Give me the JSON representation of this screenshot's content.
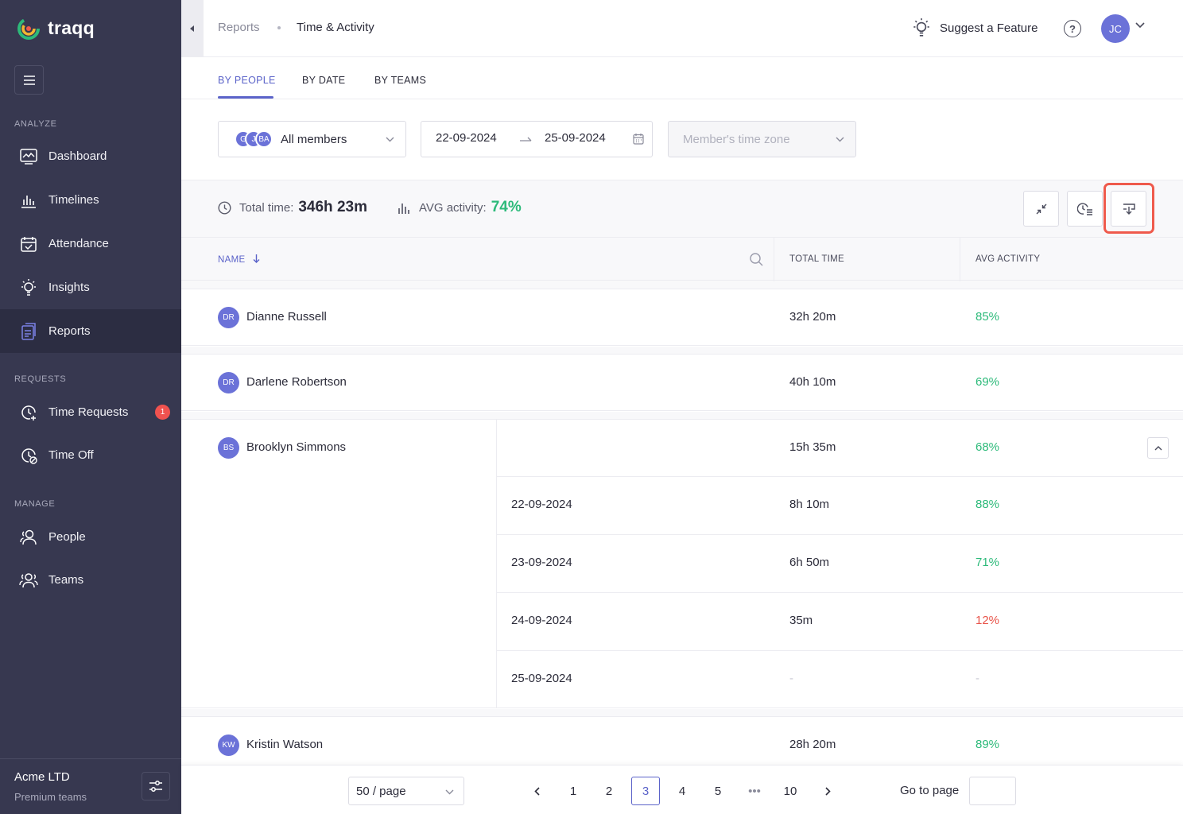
{
  "app": {
    "name": "traqq"
  },
  "sidebar": {
    "sections": {
      "analyze": "ANALYZE",
      "requests": "REQUESTS",
      "manage": "MANAGE"
    },
    "items": {
      "dashboard": "Dashboard",
      "timelines": "Timelines",
      "attendance": "Attendance",
      "insights": "Insights",
      "reports": "Reports",
      "time_requests": "Time Requests",
      "time_off": "Time Off",
      "people": "People",
      "teams": "Teams"
    },
    "time_requests_badge": "1",
    "company": "Acme LTD",
    "plan": "Premium teams"
  },
  "topbar": {
    "breadcrumb_parent": "Reports",
    "breadcrumb_current": "Time & Activity",
    "suggest_label": "Suggest a Feature",
    "help_label": "?",
    "user_initials": "JC"
  },
  "tabs": {
    "by_people": "BY PEOPLE",
    "by_date": "BY DATE",
    "by_teams": "BY TEAMS"
  },
  "filters": {
    "members_label": "All members",
    "member_avatars": [
      "G",
      "J",
      "BA"
    ],
    "date_from": "22-09-2024",
    "date_to": "25-09-2024",
    "timezone_placeholder": "Member's time zone"
  },
  "summary": {
    "total_label": "Total time:",
    "total_value": "346h 23m",
    "avg_label": "AVG activity:",
    "avg_value": "74%"
  },
  "table": {
    "headers": {
      "name": "NAME",
      "total_time": "TOTAL TIME",
      "avg_activity": "AVG ACTIVITY"
    },
    "rows": [
      {
        "initials": "DR",
        "name": "Dianne Russell",
        "total": "32h 20m",
        "avg": "85%"
      },
      {
        "initials": "DR",
        "name": "Darlene Robertson",
        "total": "40h 10m",
        "avg": "69%"
      },
      {
        "initials": "BS",
        "name": "Brooklyn Simmons",
        "total": "15h 35m",
        "avg": "68%",
        "days": [
          {
            "date": "22-09-2024",
            "total": "8h 10m",
            "avg": "88%"
          },
          {
            "date": "23-09-2024",
            "total": "6h 50m",
            "avg": "71%"
          },
          {
            "date": "24-09-2024",
            "total": "35m",
            "avg": "12%"
          },
          {
            "date": "25-09-2024",
            "total": "-",
            "avg": "-"
          }
        ]
      },
      {
        "initials": "KW",
        "name": "Kristin Watson",
        "total": "28h 20m",
        "avg": "89%"
      }
    ]
  },
  "pagination": {
    "per_page": "50 / page",
    "pages": [
      "1",
      "2",
      "3",
      "4",
      "5",
      "•••",
      "10"
    ],
    "current": "3",
    "goto_label": "Go to page"
  },
  "colors": {
    "sidebar": "#373850",
    "accent": "#5b63c9",
    "positive": "#2dba7a",
    "negative": "#e8544a",
    "highlight": "#ef5a4c"
  }
}
